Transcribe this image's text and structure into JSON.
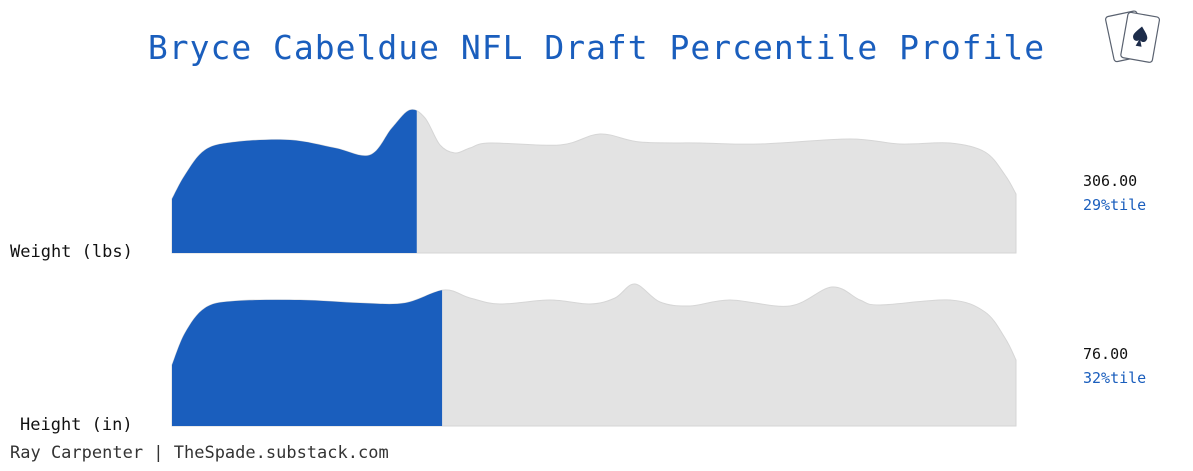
{
  "title": "Bryce Cabeldue NFL Draft Percentile Profile",
  "footer": "Ray Carpenter | TheSpade.substack.com",
  "colors": {
    "accent": "#1a5ebd",
    "distribution": "#e3e3e3",
    "distribution_edge": "#d6d6d6",
    "text": "#111111"
  },
  "logo": {
    "icon": "playing-cards-spade-icon"
  },
  "chart_data": {
    "type": "area",
    "series": [
      {
        "name": "Weight (lbs)",
        "value": "306.00",
        "percentile": 29,
        "percentile_label": "29%tile"
      },
      {
        "name": "Height (in)",
        "value": "76.00",
        "percentile": 32,
        "percentile_label": "32%tile"
      }
    ]
  }
}
